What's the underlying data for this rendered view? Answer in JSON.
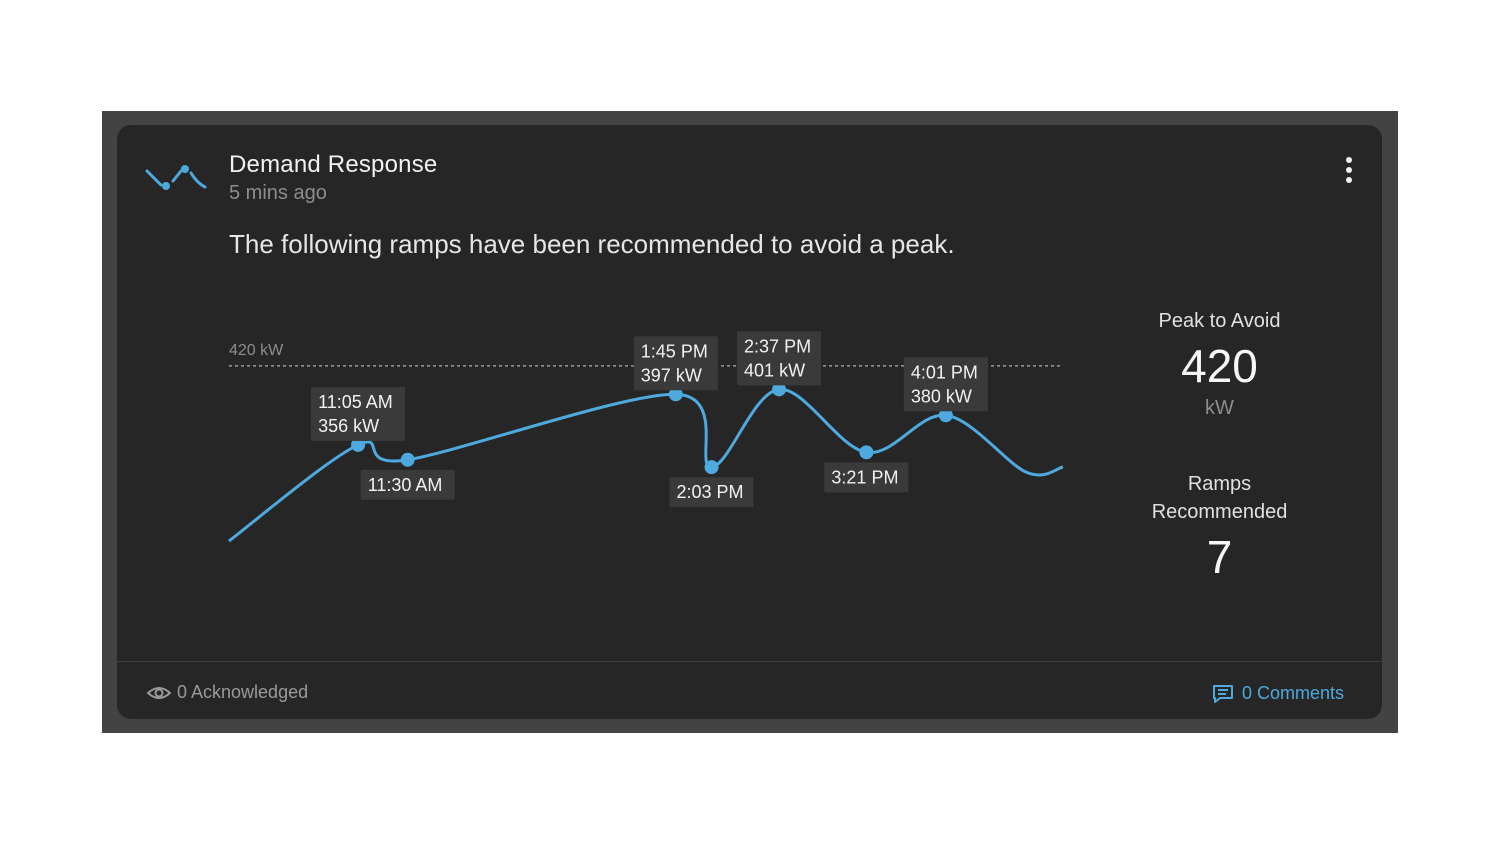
{
  "card": {
    "title": "Demand Response",
    "timestamp": "5 mins ago",
    "message": "The following ramps have been recommended to avoid a peak."
  },
  "icons": {
    "app": "demand-response-wave-icon",
    "menu": "more-vertical-icon",
    "acknowledged": "eye-icon",
    "comments": "comment-icon"
  },
  "colors": {
    "accent": "#4ea9de",
    "card_bg": "#262626",
    "frame_bg": "#434343"
  },
  "stats": {
    "peak_label": "Peak to Avoid",
    "peak_value": "420",
    "peak_unit": "kW",
    "ramps_label": "Ramps Recommended",
    "ramps_value": "7"
  },
  "footer": {
    "acknowledged": "0 Acknowledged",
    "comments": "0 Comments"
  },
  "chart_data": {
    "type": "line",
    "threshold": {
      "value": 420,
      "label": "420 kW"
    },
    "ylim": [
      275,
      445
    ],
    "xlim": [
      "10:00 AM",
      "5:00 PM"
    ],
    "points": [
      {
        "time": "11:05 AM",
        "value": 356,
        "label_time": "11:05 AM",
        "label_value": "356 kW",
        "label_pos": "above"
      },
      {
        "time": "11:30 AM",
        "value": 344,
        "label_time": "11:30 AM",
        "label_value": "",
        "label_pos": "below"
      },
      {
        "time": "1:45 PM",
        "value": 397,
        "label_time": "1:45 PM",
        "label_value": "397 kW",
        "label_pos": "above"
      },
      {
        "time": "2:03 PM",
        "value": 338,
        "label_time": "2:03 PM",
        "label_value": "",
        "label_pos": "below"
      },
      {
        "time": "2:37 PM",
        "value": 401,
        "label_time": "2:37 PM",
        "label_value": "401 kW",
        "label_pos": "above"
      },
      {
        "time": "3:21 PM",
        "value": 350,
        "label_time": "3:21 PM",
        "label_value": "",
        "label_pos": "below"
      },
      {
        "time": "4:01 PM",
        "value": 380,
        "label_time": "4:01 PM",
        "label_value": "380 kW",
        "label_pos": "above"
      }
    ],
    "grid": false,
    "legend": "none"
  }
}
